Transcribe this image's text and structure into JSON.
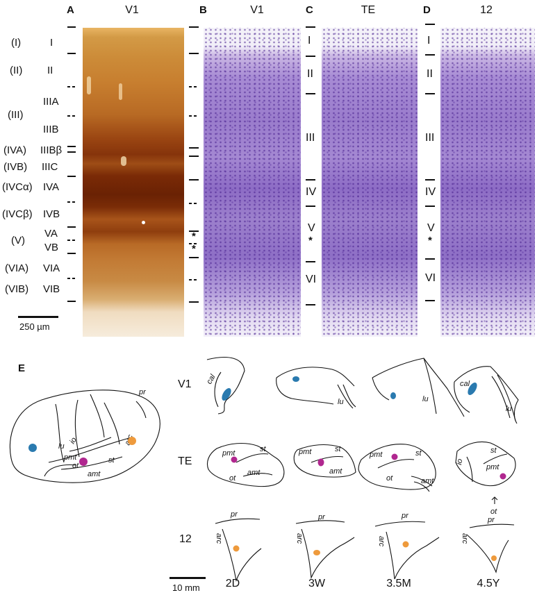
{
  "panels": {
    "A": {
      "letter": "A",
      "title": "V1"
    },
    "B": {
      "letter": "B",
      "title": "V1"
    },
    "C": {
      "letter": "C",
      "title": "TE"
    },
    "D": {
      "letter": "D",
      "title": "12"
    },
    "E": {
      "letter": "E"
    }
  },
  "layers_a_old": [
    "(I)",
    "(II)",
    "(III)",
    "(IVA)",
    "(IVB)",
    "(IVCα)",
    "(IVCβ)",
    "(V)",
    "(VIA)",
    "(VIB)"
  ],
  "layers_a_new": [
    "I",
    "II",
    "IIIA",
    "IIIB",
    "IIIBβ",
    "IIIC",
    "IVA",
    "IVB",
    "VA",
    "VB",
    "VIA",
    "VIB"
  ],
  "layers_c": [
    "I",
    "II",
    "III",
    "IV",
    "V",
    "VI"
  ],
  "layers_d": [
    "I",
    "II",
    "III",
    "IV",
    "V",
    "VI"
  ],
  "asterisk": "*",
  "scale_top": "250 µm",
  "scale_bottom": "10 mm",
  "rows": [
    "V1",
    "TE",
    "12"
  ],
  "ages": [
    "2D",
    "3W",
    "3.5M",
    "4.5Y"
  ],
  "sulci": {
    "cal": "cal",
    "lu": "lu",
    "pmt": "pmt",
    "st": "st",
    "amt": "amt",
    "ot": "ot",
    "io": "io",
    "pr": "pr",
    "arc": "arc"
  },
  "colors": {
    "v1": "#2a7aaf",
    "te": "#b0278f",
    "area12": "#ee9a3c"
  }
}
